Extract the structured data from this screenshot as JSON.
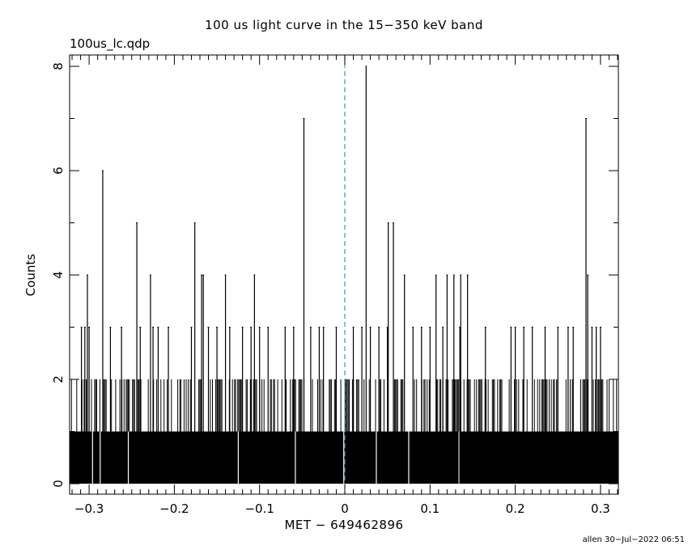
{
  "header": {
    "title": "100 us light curve in the 15−350 keV band",
    "subtitle": "100us_lc.qdp"
  },
  "footer": {
    "stamp": "allen 30−Jul−2022 06:51"
  },
  "colors": {
    "bars": "#000000",
    "trigger_line": "#1fa6a6",
    "background": "#ffffff"
  },
  "chart_data": {
    "type": "bar",
    "title": "100 us light curve in the 15−350 keV band",
    "xlabel": "MET − 649462896",
    "ylabel": "Counts",
    "xlim": [
      -0.32,
      0.32
    ],
    "ylim": [
      -0.2,
      8.2
    ],
    "bin_width": 0.0001,
    "baseline_level": 1,
    "baseline_gaps": [
      -0.296,
      -0.287,
      -0.254,
      -0.125,
      -0.058,
      -0.0012,
      0.037,
      0.075,
      0.134
    ],
    "x_ticks": [
      {
        "value": -0.3,
        "label": "−0.3"
      },
      {
        "value": -0.2,
        "label": "−0.2"
      },
      {
        "value": -0.1,
        "label": "−0.1"
      },
      {
        "value": 0,
        "label": "0"
      },
      {
        "value": 0.1,
        "label": "0.1"
      },
      {
        "value": 0.2,
        "label": "0.2"
      },
      {
        "value": 0.3,
        "label": "0.3"
      }
    ],
    "y_ticks": [
      {
        "value": 0,
        "label": "0"
      },
      {
        "value": 2,
        "label": "2"
      },
      {
        "value": 4,
        "label": "4"
      },
      {
        "value": 6,
        "label": "6"
      },
      {
        "value": 8,
        "label": "8"
      }
    ],
    "spikes": [
      {
        "x": -0.284,
        "y": 6
      },
      {
        "x": -0.302,
        "y": 4
      },
      {
        "x": -0.309,
        "y": 3
      },
      {
        "x": -0.305,
        "y": 3
      },
      {
        "x": -0.3,
        "y": 3
      },
      {
        "x": -0.275,
        "y": 3
      },
      {
        "x": -0.262,
        "y": 3
      },
      {
        "x": -0.244,
        "y": 5
      },
      {
        "x": -0.228,
        "y": 4
      },
      {
        "x": -0.24,
        "y": 3
      },
      {
        "x": -0.225,
        "y": 3
      },
      {
        "x": -0.219,
        "y": 3
      },
      {
        "x": -0.207,
        "y": 3
      },
      {
        "x": -0.176,
        "y": 5
      },
      {
        "x": -0.168,
        "y": 4
      },
      {
        "x": -0.166,
        "y": 4
      },
      {
        "x": -0.18,
        "y": 3
      },
      {
        "x": -0.16,
        "y": 3
      },
      {
        "x": -0.15,
        "y": 3
      },
      {
        "x": -0.14,
        "y": 4
      },
      {
        "x": -0.135,
        "y": 3
      },
      {
        "x": -0.12,
        "y": 3
      },
      {
        "x": -0.11,
        "y": 3
      },
      {
        "x": -0.106,
        "y": 4
      },
      {
        "x": -0.1,
        "y": 3
      },
      {
        "x": -0.09,
        "y": 3
      },
      {
        "x": -0.07,
        "y": 3
      },
      {
        "x": -0.06,
        "y": 3
      },
      {
        "x": -0.048,
        "y": 7
      },
      {
        "x": -0.04,
        "y": 3
      },
      {
        "x": -0.03,
        "y": 3
      },
      {
        "x": -0.025,
        "y": 3
      },
      {
        "x": -0.01,
        "y": 3
      },
      {
        "x": 0.01,
        "y": 3
      },
      {
        "x": 0.02,
        "y": 3
      },
      {
        "x": 0.025,
        "y": 8
      },
      {
        "x": 0.03,
        "y": 3
      },
      {
        "x": 0.04,
        "y": 3
      },
      {
        "x": 0.05,
        "y": 3
      },
      {
        "x": 0.051,
        "y": 5
      },
      {
        "x": 0.057,
        "y": 5
      },
      {
        "x": 0.07,
        "y": 4
      },
      {
        "x": 0.08,
        "y": 3
      },
      {
        "x": 0.09,
        "y": 3
      },
      {
        "x": 0.1,
        "y": 3
      },
      {
        "x": 0.107,
        "y": 4
      },
      {
        "x": 0.115,
        "y": 3
      },
      {
        "x": 0.12,
        "y": 4
      },
      {
        "x": 0.128,
        "y": 4
      },
      {
        "x": 0.135,
        "y": 3
      },
      {
        "x": 0.136,
        "y": 4
      },
      {
        "x": 0.144,
        "y": 4
      },
      {
        "x": 0.165,
        "y": 3
      },
      {
        "x": 0.195,
        "y": 3
      },
      {
        "x": 0.2,
        "y": 3
      },
      {
        "x": 0.21,
        "y": 3
      },
      {
        "x": 0.22,
        "y": 3
      },
      {
        "x": 0.235,
        "y": 3
      },
      {
        "x": 0.25,
        "y": 3
      },
      {
        "x": 0.262,
        "y": 3
      },
      {
        "x": 0.268,
        "y": 3
      },
      {
        "x": 0.283,
        "y": 7
      },
      {
        "x": 0.285,
        "y": 4
      },
      {
        "x": 0.29,
        "y": 3
      },
      {
        "x": 0.295,
        "y": 3
      },
      {
        "x": 0.3,
        "y": 3
      }
    ],
    "trigger_marker": {
      "x": 0,
      "style": "dashed"
    }
  }
}
